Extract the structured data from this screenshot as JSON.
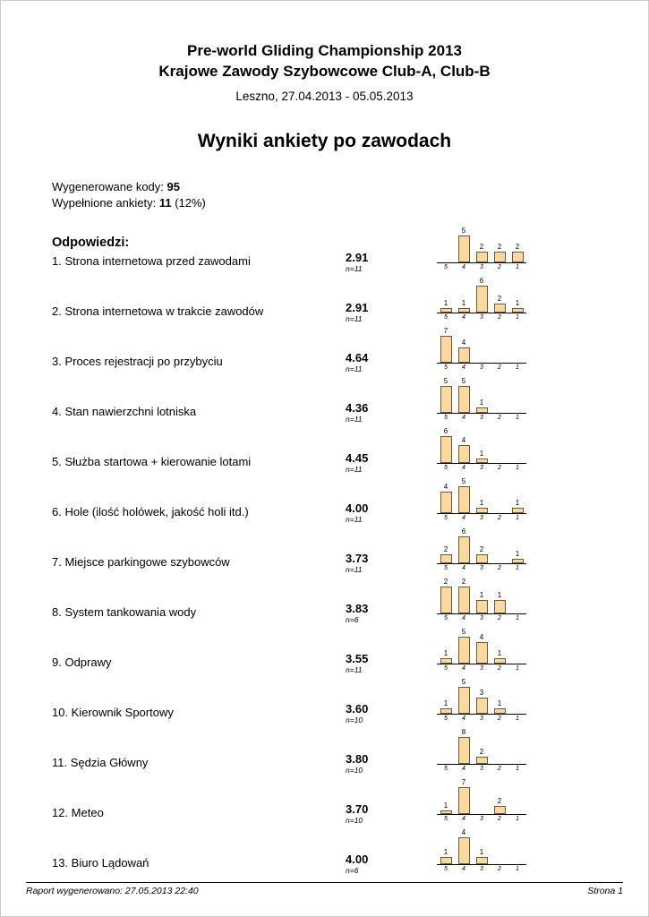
{
  "header": {
    "title_line1": "Pre-world Gliding Championship 2013",
    "title_line2": "Krajowe Zawody Szybowcowe Club-A, Club-B",
    "subtitle": "Leszno, 27.04.2013 - 05.05.2013"
  },
  "main_title": "Wyniki ankiety po zawodach",
  "stats": {
    "codes_label": "Wygenerowane kody: ",
    "codes_value": "95",
    "surveys_label": "Wypełnione ankiety: ",
    "surveys_value": "11",
    "surveys_note": " (12%)"
  },
  "answers_heading": "Odpowiedzi:",
  "chart": {
    "type": "bar",
    "categories": [
      "5",
      "4",
      "3",
      "2",
      "1"
    ],
    "bar_fill": "#FCD79E",
    "bar_border": "#6b5a36",
    "axis_color": "#000000"
  },
  "questions": [
    {
      "label": "1. Strona internetowa przed zawodami",
      "score": "2.91",
      "n": "n=11",
      "counts": [
        0,
        5,
        2,
        2,
        2
      ]
    },
    {
      "label": "2. Strona internetowa w trakcie zawodów",
      "score": "2.91",
      "n": "n=11",
      "counts": [
        1,
        1,
        6,
        2,
        1
      ]
    },
    {
      "label": "3. Proces rejestracji po przybyciu",
      "score": "4.64",
      "n": "n=11",
      "counts": [
        7,
        4,
        0,
        0,
        0
      ]
    },
    {
      "label": "4. Stan nawierzchni lotniska",
      "score": "4.36",
      "n": "n=11",
      "counts": [
        5,
        5,
        1,
        0,
        0
      ]
    },
    {
      "label": "5. Służba startowa + kierowanie lotami",
      "score": "4.45",
      "n": "n=11",
      "counts": [
        6,
        4,
        1,
        0,
        0
      ]
    },
    {
      "label": "6. Hole (ilość holówek, jakość holi itd.)",
      "score": "4.00",
      "n": "n=11",
      "counts": [
        4,
        5,
        1,
        0,
        1
      ]
    },
    {
      "label": "7. Miejsce parkingowe szybowców",
      "score": "3.73",
      "n": "n=11",
      "counts": [
        2,
        6,
        2,
        0,
        1
      ]
    },
    {
      "label": "8. System tankowania wody",
      "score": "3.83",
      "n": "n=6",
      "counts": [
        2,
        2,
        1,
        1,
        0
      ]
    },
    {
      "label": "9. Odprawy",
      "score": "3.55",
      "n": "n=11",
      "counts": [
        1,
        5,
        4,
        1,
        0
      ]
    },
    {
      "label": "10. Kierownik Sportowy",
      "score": "3.60",
      "n": "n=10",
      "counts": [
        1,
        5,
        3,
        1,
        0
      ]
    },
    {
      "label": "11. Sędzia Główny",
      "score": "3.80",
      "n": "n=10",
      "counts": [
        0,
        8,
        2,
        0,
        0
      ]
    },
    {
      "label": "12. Meteo",
      "score": "3.70",
      "n": "n=10",
      "counts": [
        1,
        7,
        0,
        2,
        0
      ]
    },
    {
      "label": "13. Biuro Lądowań",
      "score": "4.00",
      "n": "n=6",
      "counts": [
        1,
        4,
        1,
        0,
        0
      ]
    }
  ],
  "footer": {
    "left": "Raport wygenerowano: 27.05.2013 22:40",
    "right": "Strona 1"
  }
}
